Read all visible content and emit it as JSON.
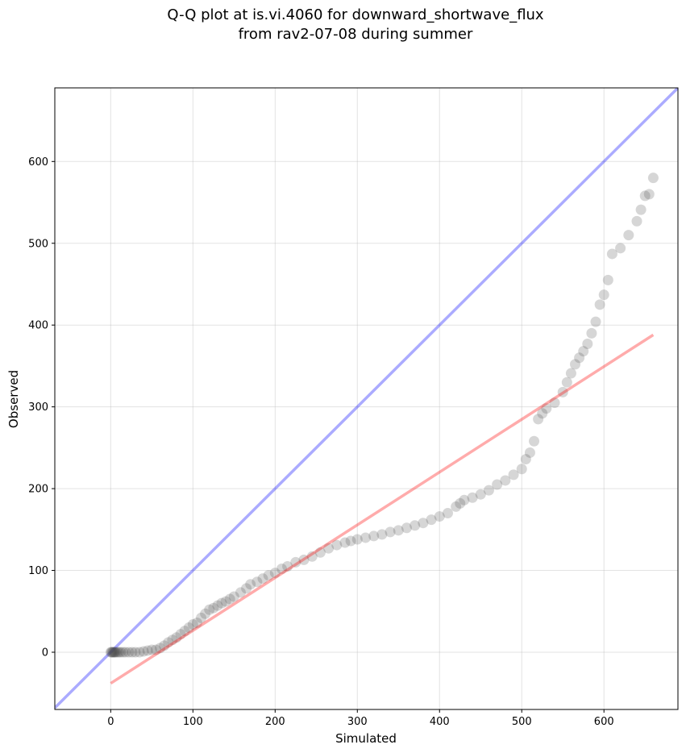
{
  "chart_data": {
    "type": "scatter",
    "title_lines": [
      "Q-Q plot at is.vi.4060 for downward_shortwave_flux",
      "from rav2-07-08 during summer"
    ],
    "xlabel": "Simulated",
    "ylabel": "Observed",
    "xlim": [
      -68,
      690
    ],
    "ylim": [
      -70,
      690
    ],
    "xticks": [
      0,
      100,
      200,
      300,
      400,
      500,
      600
    ],
    "yticks": [
      0,
      100,
      200,
      300,
      400,
      500,
      600
    ],
    "grid": true,
    "colors": {
      "points": "#444444",
      "identity_line": "#0000ff",
      "fit_line": "#ff0000"
    },
    "identity_line": {
      "x": [
        -68,
        690
      ],
      "y": [
        -68,
        690
      ]
    },
    "fit_line": {
      "x": [
        0,
        660
      ],
      "y": [
        -38,
        388
      ]
    },
    "points": {
      "x": [
        0,
        1,
        2,
        3,
        4,
        5,
        6,
        8,
        10,
        12,
        15,
        18,
        22,
        26,
        30,
        35,
        40,
        45,
        50,
        55,
        60,
        65,
        70,
        75,
        80,
        85,
        90,
        95,
        100,
        105,
        110,
        115,
        120,
        125,
        130,
        135,
        140,
        145,
        150,
        158,
        165,
        170,
        178,
        185,
        192,
        200,
        208,
        215,
        225,
        235,
        245,
        255,
        265,
        275,
        285,
        292,
        300,
        310,
        320,
        330,
        340,
        350,
        360,
        370,
        380,
        390,
        400,
        410,
        420,
        425,
        430,
        440,
        450,
        460,
        470,
        480,
        490,
        500,
        505,
        510,
        515,
        520,
        525,
        530,
        540,
        550,
        555,
        560,
        565,
        570,
        575,
        580,
        585,
        590,
        595,
        600,
        605,
        610,
        620,
        630,
        640,
        645,
        650,
        655,
        660
      ],
      "y": [
        0,
        0,
        0,
        0,
        0,
        0,
        0,
        0,
        0,
        0,
        0,
        0,
        0,
        0,
        0,
        0,
        1,
        2,
        3,
        3,
        5,
        8,
        12,
        15,
        18,
        22,
        26,
        30,
        34,
        36,
        42,
        47,
        52,
        54,
        57,
        60,
        62,
        65,
        68,
        73,
        78,
        83,
        86,
        90,
        94,
        97,
        102,
        105,
        110,
        113,
        117,
        122,
        127,
        131,
        134,
        136,
        138,
        140,
        142,
        144,
        147,
        149,
        152,
        155,
        158,
        162,
        166,
        170,
        178,
        182,
        186,
        189,
        193,
        198,
        205,
        210,
        217,
        224,
        236,
        244,
        258,
        285,
        292,
        298,
        305,
        318,
        330,
        341,
        352,
        360,
        368,
        377,
        390,
        404,
        425,
        437,
        455,
        487,
        494,
        510,
        527,
        541,
        558,
        560,
        580
      ]
    }
  }
}
